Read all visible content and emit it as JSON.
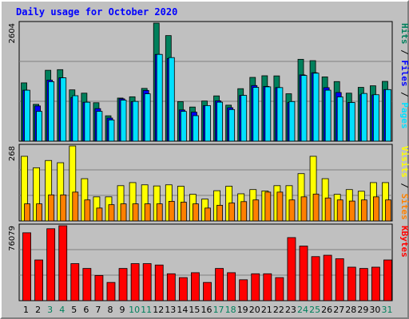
{
  "title": "Daily usage for October 2020",
  "colors": {
    "hits": "#00805c",
    "files": "#0000ff",
    "pages": "#00e0ff",
    "visits": "#ffff00",
    "sites": "#ff8000",
    "kbytes": "#ff0000",
    "weekend_label": "#00805c",
    "weekday_label": "#000000"
  },
  "chart_data": [
    {
      "type": "bar",
      "categories": [
        "1",
        "2",
        "3",
        "4",
        "5",
        "6",
        "7",
        "8",
        "9",
        "10",
        "11",
        "12",
        "13",
        "14",
        "15",
        "16",
        "17",
        "18",
        "19",
        "20",
        "21",
        "22",
        "23",
        "24",
        "25",
        "26",
        "27",
        "28",
        "29",
        "30",
        "31"
      ],
      "weekend_days": [
        "3",
        "4",
        "10",
        "11",
        "17",
        "18",
        "24",
        "25",
        "31"
      ],
      "ymax_label": "2604",
      "ylim": [
        0,
        2604
      ],
      "grid": true,
      "legend": "right",
      "series": [
        {
          "name": "Hits",
          "values": [
            1286,
            813,
            1564,
            1578,
            1132,
            1059,
            848,
            560,
            951,
            979,
            1164,
            2604,
            2329,
            873,
            753,
            886,
            999,
            794,
            1158,
            1407,
            1443,
            1440,
            1046,
            1806,
            1776,
            1418,
            1315,
            1059,
            1187,
            1222,
            1319
          ]
        },
        {
          "name": "Files",
          "values": [
            1124,
            777,
            1347,
            1398,
            963,
            859,
            718,
            510,
            934,
            872,
            1120,
            1914,
            1824,
            689,
            640,
            785,
            890,
            738,
            1008,
            1227,
            1208,
            1182,
            851,
            1462,
            1510,
            1180,
            1073,
            853,
            1024,
            1020,
            1138
          ]
        },
        {
          "name": "Pages",
          "values": [
            1124,
            657,
            1312,
            1398,
            1003,
            859,
            658,
            468,
            905,
            877,
            1045,
            1914,
            1844,
            657,
            563,
            785,
            860,
            698,
            1010,
            1187,
            1198,
            1182,
            874,
            1450,
            1500,
            1125,
            977,
            853,
            1053,
            1025,
            1138
          ]
        }
      ]
    },
    {
      "type": "bar",
      "categories": [
        "1",
        "2",
        "3",
        "4",
        "5",
        "6",
        "7",
        "8",
        "9",
        "10",
        "11",
        "12",
        "13",
        "14",
        "15",
        "16",
        "17",
        "18",
        "19",
        "20",
        "21",
        "22",
        "23",
        "24",
        "25",
        "26",
        "27",
        "28",
        "29",
        "30",
        "31"
      ],
      "ymax_label": "268",
      "ylim": [
        0,
        268
      ],
      "grid": true,
      "legend": "right",
      "series": [
        {
          "name": "Visits",
          "values": [
            231,
            190,
            216,
            208,
            268,
            151,
            86,
            86,
            126,
            137,
            129,
            125,
            129,
            124,
            95,
            78,
            108,
            124,
            97,
            112,
            107,
            126,
            126,
            169,
            231,
            151,
            95,
            112,
            106,
            137,
            137
          ]
        },
        {
          "name": "Sites",
          "values": [
            61,
            61,
            93,
            93,
            103,
            75,
            46,
            58,
            61,
            61,
            61,
            61,
            70,
            67,
            61,
            46,
            56,
            64,
            69,
            75,
            103,
            103,
            75,
            86,
            96,
            82,
            75,
            71,
            75,
            86,
            75
          ]
        }
      ]
    },
    {
      "type": "bar",
      "categories": [
        "1",
        "2",
        "3",
        "4",
        "5",
        "6",
        "7",
        "8",
        "9",
        "10",
        "11",
        "12",
        "13",
        "14",
        "15",
        "16",
        "17",
        "18",
        "19",
        "20",
        "21",
        "22",
        "23",
        "24",
        "25",
        "26",
        "27",
        "28",
        "29",
        "30",
        "31"
      ],
      "ymax_label": "76079",
      "ylim": [
        0,
        76079
      ],
      "grid": true,
      "legend": "right",
      "series": [
        {
          "name": "KBytes",
          "values": [
            68900,
            41300,
            73000,
            76079,
            37600,
            32700,
            25600,
            18500,
            32700,
            37600,
            37600,
            36200,
            27300,
            23400,
            28400,
            18500,
            32700,
            28400,
            21200,
            27300,
            27300,
            23400,
            64000,
            55400,
            44700,
            46100,
            42600,
            34000,
            32700,
            34000,
            41300
          ]
        }
      ]
    }
  ]
}
